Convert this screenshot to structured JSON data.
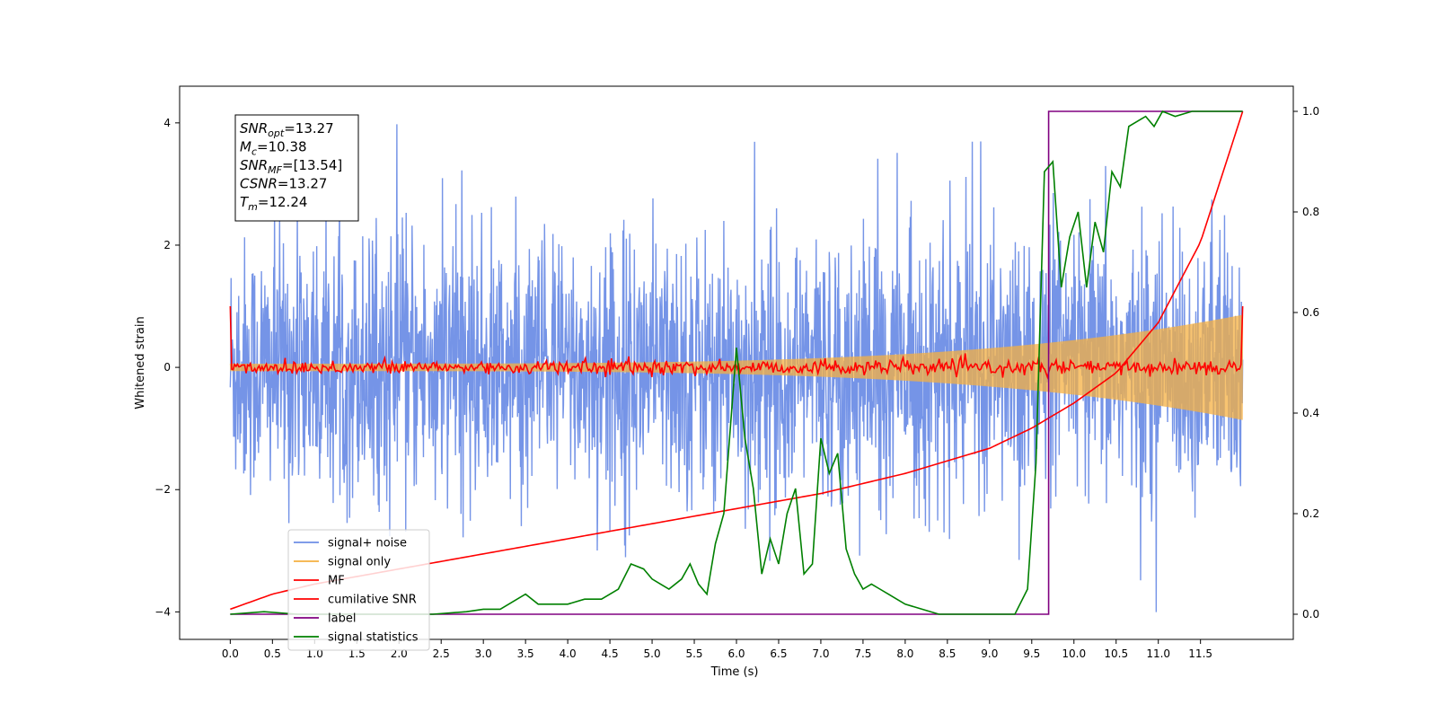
{
  "chart_data": {
    "type": "line",
    "xlabel": "Time (s)",
    "ylabel": "Whitened strain",
    "xlim": [
      -0.6,
      12.6
    ],
    "ylim": [
      -4.45,
      4.6
    ],
    "ylim_right": [
      -0.05,
      1.05
    ],
    "x_ticks": [
      "0.0",
      "0.5",
      "1.0",
      "1.5",
      "2.0",
      "2.5",
      "3.0",
      "3.5",
      "4.0",
      "4.5",
      "5.0",
      "5.5",
      "6.0",
      "6.5",
      "7.0",
      "7.5",
      "8.0",
      "8.5",
      "9.0",
      "9.5",
      "10.0",
      "10.5",
      "11.0",
      "11.5"
    ],
    "y_ticks": [
      "−4",
      "−2",
      "0",
      "2",
      "4"
    ],
    "y_ticks_right": [
      "0.0",
      "0.2",
      "0.4",
      "0.6",
      "0.8",
      "1.0"
    ],
    "grid": false,
    "legend_position": "lower-left",
    "textbox": [
      {
        "base": "SNR",
        "sub": "opt",
        "value": "=13.27"
      },
      {
        "base": "M",
        "sub": "c",
        "value": "=10.38"
      },
      {
        "base": "SNR",
        "sub": "MF",
        "value": "=[13.54]"
      },
      {
        "base": "CSNR",
        "sub": "",
        "value": "=13.27"
      },
      {
        "base": "T",
        "sub": "m",
        "value": "=12.24"
      }
    ],
    "series": [
      {
        "name": "signal+ noise",
        "color": "#6e8ee6",
        "axis": "left",
        "description": "white noise, amplitude about ±2.5 with spikes to about ±4"
      },
      {
        "name": "signal only",
        "color": "#f5b041",
        "axis": "left",
        "description": "chirp envelope growing from ~0.05 to ~0.85 over 0–12 s"
      },
      {
        "name": "MF",
        "color": "#ff0000",
        "axis": "left",
        "description": "noise around 0 (±0.15), start and end ~1.0"
      },
      {
        "name": "cumilative SNR",
        "color": "#ff0000",
        "axis": "right",
        "x": [
          0.0,
          0.5,
          1.0,
          2.0,
          3.0,
          4.0,
          5.0,
          6.0,
          7.0,
          8.0,
          9.0,
          9.5,
          10.0,
          10.5,
          11.0,
          11.5,
          12.0
        ],
        "values": [
          0.01,
          0.04,
          0.06,
          0.09,
          0.12,
          0.15,
          0.18,
          0.21,
          0.24,
          0.28,
          0.33,
          0.37,
          0.42,
          0.48,
          0.58,
          0.74,
          1.0
        ]
      },
      {
        "name": "label",
        "color": "#800080",
        "axis": "right",
        "x": [
          0.0,
          9.7,
          9.7,
          12.0
        ],
        "values": [
          0.0,
          0.0,
          1.0,
          1.0
        ]
      },
      {
        "name": "signal statistics",
        "color": "#008000",
        "axis": "right",
        "x": [
          0.0,
          0.4,
          0.8,
          1.2,
          1.6,
          2.0,
          2.4,
          2.8,
          3.0,
          3.2,
          3.5,
          3.65,
          3.8,
          4.0,
          4.2,
          4.4,
          4.6,
          4.75,
          4.9,
          5.0,
          5.1,
          5.2,
          5.35,
          5.45,
          5.55,
          5.65,
          5.75,
          5.85,
          6.0,
          6.1,
          6.2,
          6.3,
          6.4,
          6.5,
          6.6,
          6.7,
          6.8,
          6.9,
          7.0,
          7.1,
          7.2,
          7.3,
          7.4,
          7.5,
          7.6,
          7.7,
          7.8,
          7.9,
          8.0,
          8.2,
          8.4,
          8.6,
          8.8,
          9.0,
          9.3,
          9.45,
          9.55,
          9.65,
          9.75,
          9.85,
          9.95,
          10.05,
          10.15,
          10.25,
          10.35,
          10.45,
          10.55,
          10.65,
          10.75,
          10.85,
          10.95,
          11.05,
          11.2,
          11.4,
          11.6,
          11.8,
          12.0
        ],
        "values": [
          0.0,
          0.005,
          0.0,
          0.0,
          0.0,
          0.0,
          0.0,
          0.005,
          0.01,
          0.01,
          0.04,
          0.02,
          0.02,
          0.02,
          0.03,
          0.03,
          0.05,
          0.1,
          0.09,
          0.07,
          0.06,
          0.05,
          0.07,
          0.1,
          0.06,
          0.04,
          0.14,
          0.2,
          0.53,
          0.35,
          0.25,
          0.08,
          0.15,
          0.1,
          0.2,
          0.25,
          0.08,
          0.1,
          0.35,
          0.28,
          0.32,
          0.13,
          0.08,
          0.05,
          0.06,
          0.05,
          0.04,
          0.03,
          0.02,
          0.01,
          0.0,
          0.0,
          0.0,
          0.0,
          0.0,
          0.05,
          0.3,
          0.88,
          0.9,
          0.65,
          0.75,
          0.8,
          0.65,
          0.78,
          0.72,
          0.88,
          0.85,
          0.97,
          0.98,
          0.99,
          0.97,
          1.0,
          0.99,
          1.0,
          1.0,
          1.0,
          1.0
        ]
      }
    ]
  }
}
